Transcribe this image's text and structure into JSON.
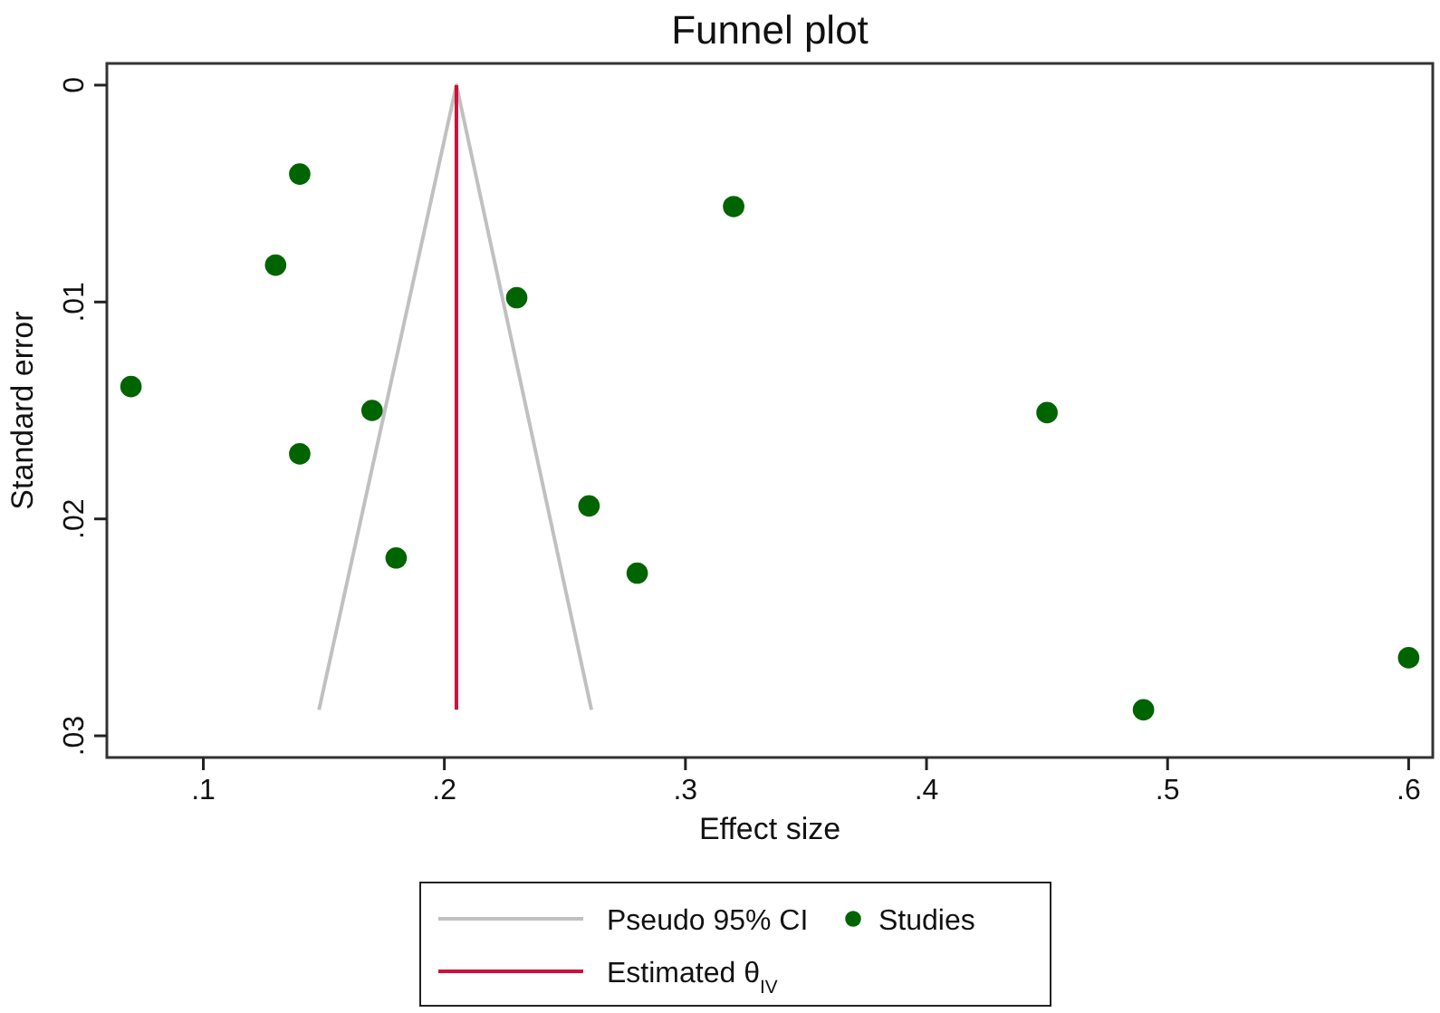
{
  "chart_data": {
    "type": "scatter",
    "title": "Funnel plot",
    "xlabel": "Effect size",
    "ylabel": "Standard error",
    "xlim": [
      0.06,
      0.61
    ],
    "xticks": [
      {
        "value": 0.1,
        "label": ".1"
      },
      {
        "value": 0.2,
        "label": ".2"
      },
      {
        "value": 0.3,
        "label": ".3"
      },
      {
        "value": 0.4,
        "label": ".4"
      },
      {
        "value": 0.5,
        "label": ".5"
      },
      {
        "value": 0.6,
        "label": ".6"
      }
    ],
    "ylim": [
      0.031,
      -0.001
    ],
    "yticks": [
      {
        "value": 0,
        "label": "0"
      },
      {
        "value": 0.01,
        "label": ".01"
      },
      {
        "value": 0.02,
        "label": ".02"
      },
      {
        "value": 0.03,
        "label": ".03"
      }
    ],
    "grid": false,
    "legend": "bottom",
    "series": [
      {
        "name": "Pseudo 95% CI",
        "type": "line",
        "color": "#c0c0c0",
        "x": [
          0.148,
          0.205,
          0.261
        ],
        "values": [
          0.0288,
          0,
          0.0288
        ]
      },
      {
        "name": "Studies",
        "marker": "circle",
        "color": "#006400",
        "x": [
          0.14,
          0.13,
          0.07,
          0.14,
          0.17,
          0.18,
          0.23,
          0.26,
          0.28,
          0.32,
          0.45,
          0.49,
          0.6
        ],
        "values": [
          0.0041,
          0.0083,
          0.0139,
          0.017,
          0.015,
          0.0218,
          0.0098,
          0.0194,
          0.0225,
          0.0056,
          0.0151,
          0.0288,
          0.0264
        ]
      },
      {
        "name": "Estimated θ$_{IV}$",
        "type": "line",
        "color": "#d0103a",
        "x": [
          0.205,
          0.205
        ],
        "values": [
          0,
          0.0288
        ]
      }
    ]
  }
}
